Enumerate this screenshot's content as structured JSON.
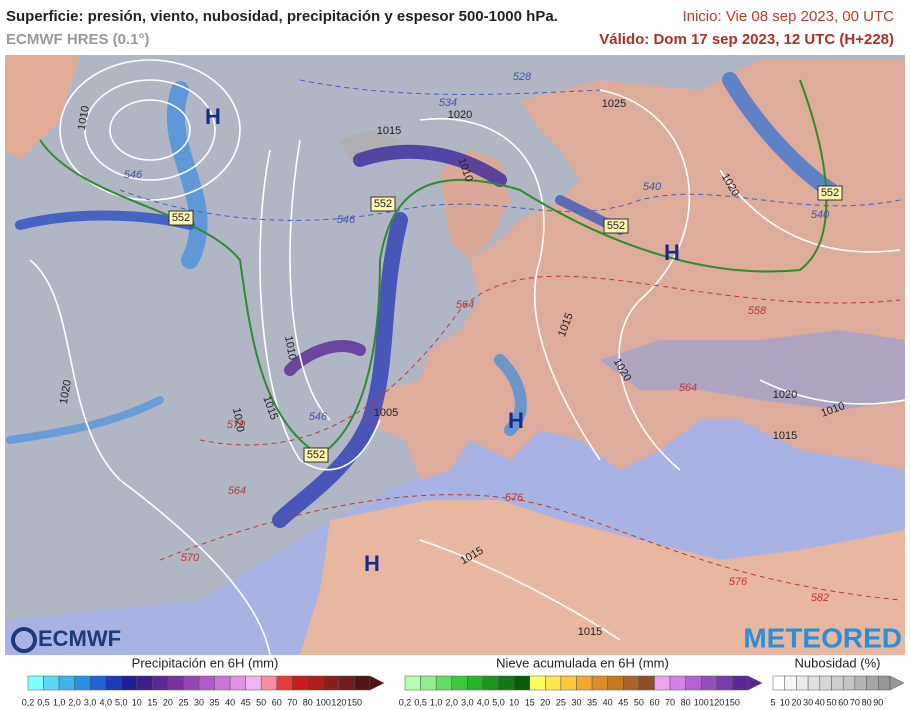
{
  "header": {
    "title": "Superficie: presión, viento, nubosidad, precipitación y espesor 500-1000 hPa.",
    "model": "ECMWF HRES (0.1°)",
    "init": "Inicio: Vie 08 sep 2023, 00 UTC",
    "valid": "Válido: Dom 17 sep 2023, 12 UTC (H+228)"
  },
  "map": {
    "pressure_centers": [
      "H",
      "H",
      "H",
      "H"
    ],
    "isobar_labels": [
      "1010",
      "1025",
      "1020",
      "1015",
      "1010",
      "1020",
      "1015",
      "1010",
      "1020",
      "1020",
      "1020",
      "1015",
      "1005",
      "1020",
      "1010",
      "1015",
      "1015",
      "1015"
    ],
    "thickness_boxes": [
      "552",
      "552",
      "552",
      "552",
      "552"
    ],
    "thickness_labels": [
      "528",
      "534",
      "540",
      "546",
      "546",
      "564",
      "558",
      "564",
      "570",
      "564",
      "570",
      "576",
      "576",
      "582",
      "546",
      "540"
    ],
    "logos": [
      "ECMWF",
      "METEORED"
    ]
  },
  "legends": [
    {
      "title": "Precipitación en 6H (mm)",
      "ticks": [
        "0,2",
        "0,5",
        "1,0",
        "2,0",
        "3,0",
        "4,0",
        "5,0",
        "10",
        "15",
        "20",
        "25",
        "30",
        "35",
        "40",
        "45",
        "50",
        "60",
        "70",
        "80",
        "100",
        "120",
        "150"
      ],
      "colors": [
        "#80ffff",
        "#5ad8f5",
        "#3cb4f0",
        "#2890e0",
        "#1e64d2",
        "#1e3cb4",
        "#1e1e96",
        "#3c1e8c",
        "#5a2896",
        "#7832a0",
        "#9646b4",
        "#b45ac8",
        "#c878d2",
        "#dc96e1",
        "#f0b4f0",
        "#fa8ca0",
        "#e63c3c",
        "#c81e1e",
        "#aa1e1e",
        "#8c1e1e",
        "#6e1e1e",
        "#501414"
      ]
    },
    {
      "title": "Nieve acumulada en 6H (mm)",
      "ticks": [
        "0,2",
        "0,5",
        "1,0",
        "2,0",
        "3,0",
        "4,0",
        "5,0",
        "10",
        "15",
        "20",
        "25",
        "30",
        "35",
        "40",
        "45",
        "50",
        "60",
        "70",
        "80",
        "100",
        "120",
        "150"
      ],
      "colors": [
        "#b4ffb4",
        "#8cf08c",
        "#64dc64",
        "#3cc83c",
        "#28b428",
        "#1e961e",
        "#147814",
        "#0a5a0a",
        "#ffff64",
        "#ffe650",
        "#ffc83c",
        "#f0aa32",
        "#dc8c28",
        "#c8781e",
        "#aa6428",
        "#8c5028",
        "#f0a0f0",
        "#d282e6",
        "#b464d2",
        "#9650be",
        "#783caa",
        "#5a2896"
      ]
    },
    {
      "title": "Nubosidad (%)",
      "ticks": [
        "5",
        "10",
        "20",
        "30",
        "40",
        "50",
        "60",
        "70",
        "80",
        "90"
      ],
      "colors": [
        "#ffffff",
        "#f5f5f5",
        "#ebebeb",
        "#e1e1e1",
        "#d7d7d7",
        "#cdcdcd",
        "#c3c3c3",
        "#b4b4b4",
        "#a5a5a5",
        "#969696"
      ]
    }
  ]
}
